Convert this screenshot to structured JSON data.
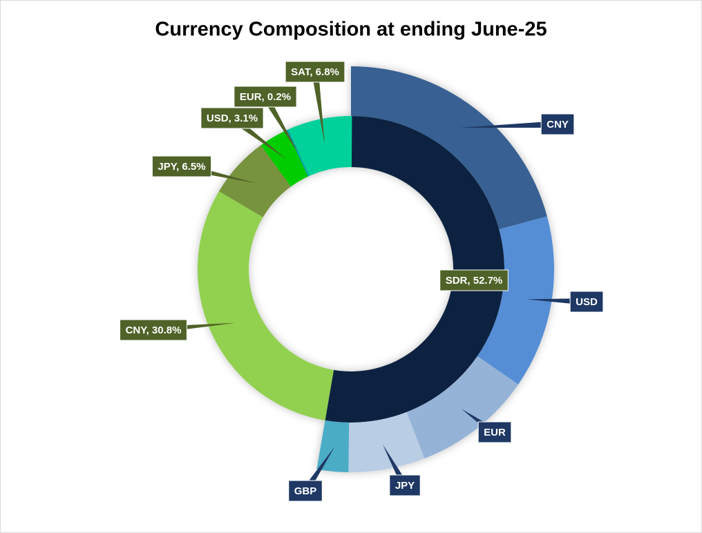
{
  "chart_data": {
    "type": "nested-donut",
    "title": "Currency Composition at ending June-25",
    "rings": [
      {
        "labels": [
          "SDR, 52.7%",
          "CNY, 30.8%",
          "JPY, 6.5%",
          "USD, 3.1%",
          "EUR, 0.2%",
          "SAT, 6.8%"
        ],
        "values": [
          52.7,
          30.8,
          6.5,
          3.1,
          0.2,
          6.8
        ],
        "colors": [
          "#112441",
          "#92d050",
          "#77933c",
          "#00cc00",
          "#00a0a0",
          "#00d09a"
        ],
        "label_color": "#4f6228"
      },
      {
        "categories": [
          "CNY",
          "USD",
          "EUR",
          "JPY",
          "GBP"
        ],
        "values": [
          20.8,
          13.8,
          9.5,
          6.1,
          2.5
        ],
        "colors": [
          "#376092",
          "#558ed5",
          "#95b3d7",
          "#b9cde5",
          "#4bacc6"
        ],
        "label_color": "#1f3864"
      }
    ]
  }
}
